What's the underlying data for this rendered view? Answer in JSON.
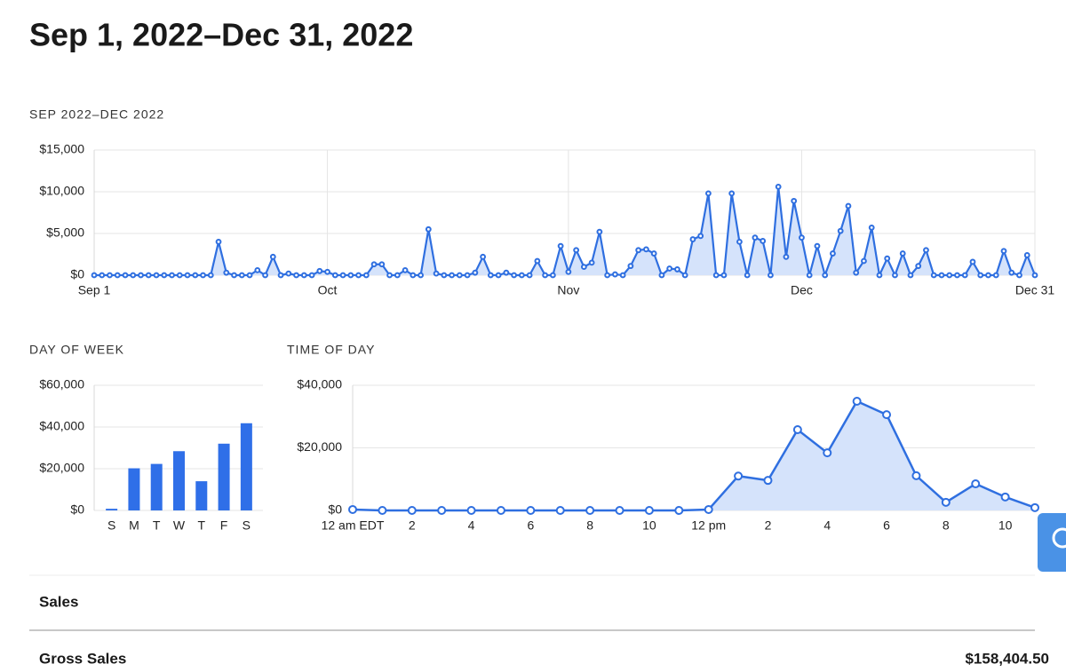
{
  "title": "Sep 1, 2022–Dec 31, 2022",
  "chart_data": [
    {
      "type": "area",
      "title": "SEP 2022–DEC 2022",
      "categories": [
        "Sep 1",
        null,
        null,
        null,
        null,
        null,
        null,
        null,
        null,
        null,
        null,
        null,
        null,
        null,
        null,
        null,
        null,
        null,
        null,
        null,
        null,
        null,
        null,
        null,
        null,
        null,
        null,
        null,
        null,
        null,
        "Oct",
        null,
        null,
        null,
        null,
        null,
        null,
        null,
        null,
        null,
        null,
        null,
        null,
        null,
        null,
        null,
        null,
        null,
        null,
        null,
        null,
        null,
        null,
        null,
        null,
        null,
        null,
        null,
        null,
        null,
        null,
        "Nov",
        null,
        null,
        null,
        null,
        null,
        null,
        null,
        null,
        null,
        null,
        null,
        null,
        null,
        null,
        null,
        null,
        null,
        null,
        null,
        null,
        null,
        null,
        null,
        null,
        null,
        null,
        null,
        null,
        null,
        "Dec",
        null,
        null,
        null,
        null,
        null,
        null,
        null,
        null,
        null,
        null,
        null,
        null,
        null,
        null,
        null,
        null,
        null,
        null,
        null,
        null,
        null,
        null,
        null,
        null,
        null,
        null,
        null,
        null,
        null,
        "Dec 31"
      ],
      "values": [
        0,
        0,
        0,
        0,
        0,
        0,
        0,
        0,
        0,
        0,
        0,
        0,
        0,
        0,
        0,
        0,
        4000,
        300,
        0,
        0,
        0,
        600,
        0,
        2200,
        0,
        200,
        0,
        0,
        0,
        500,
        400,
        0,
        0,
        0,
        0,
        0,
        1300,
        1300,
        0,
        0,
        600,
        0,
        0,
        5500,
        200,
        0,
        0,
        0,
        0,
        300,
        2200,
        0,
        0,
        300,
        0,
        0,
        0,
        1700,
        0,
        0,
        3500,
        400,
        3000,
        1000,
        1500,
        5200,
        0,
        100,
        0,
        1100,
        3000,
        3100,
        2600,
        0,
        800,
        700,
        0,
        4300,
        4700,
        9800,
        0,
        0,
        9800,
        4000,
        0,
        4500,
        4100,
        0,
        10600,
        2200,
        8900,
        4500,
        0,
        3500,
        0,
        2600,
        5300,
        8300,
        300,
        1700,
        5700,
        0,
        2000,
        0,
        2600,
        0,
        1100,
        3000,
        0,
        0,
        0,
        0,
        0,
        1600,
        0,
        0,
        0,
        2900,
        300,
        0,
        2400,
        0
      ],
      "color": "#2f6fe0",
      "area_color": "#d5e3fb",
      "ylim": [
        0,
        15000
      ],
      "yticks": [
        {
          "value": 0,
          "label": "$0"
        },
        {
          "value": 5000,
          "label": "$5,000"
        },
        {
          "value": 10000,
          "label": "$10,000"
        },
        {
          "value": 15000,
          "label": "$15,000"
        }
      ],
      "grid": true,
      "xgrid": true
    },
    {
      "type": "bar",
      "title": "DAY OF WEEK",
      "categories": [
        "S",
        "M",
        "T",
        "W",
        "T",
        "F",
        "S"
      ],
      "values": [
        800,
        20200,
        22300,
        28400,
        14000,
        32000,
        41800
      ],
      "color": "#2f6fe8",
      "ylim": [
        0,
        60000
      ],
      "yticks": [
        {
          "value": 0,
          "label": "$0"
        },
        {
          "value": 20000,
          "label": "$20,000"
        },
        {
          "value": 40000,
          "label": "$40,000"
        },
        {
          "value": 60000,
          "label": "$60,000"
        }
      ],
      "grid": true
    },
    {
      "type": "area",
      "title": "TIME OF DAY",
      "categories": [
        "12 am EDT",
        null,
        "2",
        null,
        "4",
        null,
        "6",
        null,
        "8",
        null,
        "10",
        null,
        "12 pm",
        null,
        "2",
        null,
        "4",
        null,
        "6",
        null,
        "8",
        null,
        "10",
        null
      ],
      "values": [
        300,
        0,
        0,
        0,
        0,
        0,
        0,
        0,
        0,
        0,
        0,
        0,
        300,
        11000,
        9600,
        25800,
        18400,
        34900,
        30600,
        11100,
        2600,
        8500,
        4300,
        900
      ],
      "color": "#2f6fe0",
      "area_color": "#d5e3fb",
      "ylim": [
        0,
        40000
      ],
      "yticks": [
        {
          "value": 0,
          "label": "$0"
        },
        {
          "value": 20000,
          "label": "$20,000"
        },
        {
          "value": 40000,
          "label": "$40,000"
        }
      ],
      "grid": true
    }
  ],
  "table": {
    "header": "Sales",
    "rows": [
      [
        "Gross Sales",
        "$158,404.50"
      ]
    ]
  }
}
